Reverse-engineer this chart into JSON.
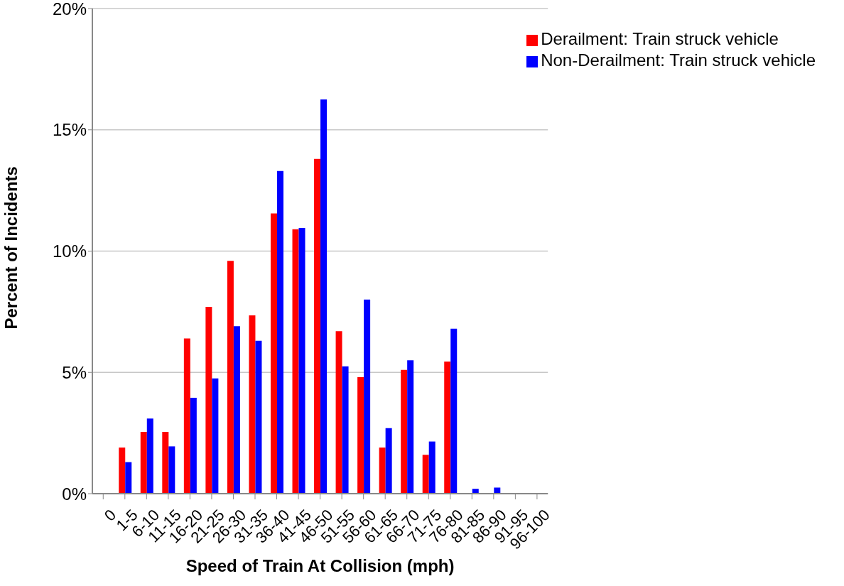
{
  "chart_data": {
    "type": "bar",
    "xlabel": "Speed of Train At Collision (mph)",
    "ylabel": "Percent of Incidents",
    "categories": [
      "0",
      "1-5",
      "6-10",
      "11-15",
      "16-20",
      "21-25",
      "26-30",
      "31-35",
      "36-40",
      "41-45",
      "46-50",
      "51-55",
      "56-60",
      "61-65",
      "66-70",
      "71-75",
      "76-80",
      "81-85",
      "86-90",
      "91-95",
      "96-100"
    ],
    "series": [
      {
        "name": "Derailment: Train struck vehicle",
        "color": "#ff0000",
        "values": [
          0,
          1.9,
          2.55,
          2.55,
          6.4,
          7.7,
          9.6,
          7.35,
          11.55,
          10.9,
          13.8,
          6.7,
          4.8,
          1.9,
          5.1,
          1.6,
          5.45,
          0,
          0,
          0,
          0
        ]
      },
      {
        "name": "Non-Derailment: Train struck vehicle",
        "color": "#0000ff",
        "values": [
          0,
          1.3,
          3.1,
          1.95,
          3.95,
          4.75,
          6.9,
          6.3,
          13.3,
          10.95,
          16.25,
          5.25,
          8.0,
          2.7,
          5.5,
          2.15,
          6.8,
          0.2,
          0.25,
          0,
          0
        ]
      }
    ],
    "ylim": [
      0,
      20
    ],
    "yticks": [
      {
        "value": 0,
        "label": "0%"
      },
      {
        "value": 5,
        "label": "5%"
      },
      {
        "value": 10,
        "label": "10%"
      },
      {
        "value": 15,
        "label": "15%"
      },
      {
        "value": 20,
        "label": "20%"
      }
    ],
    "grid": "y",
    "legend": "top right"
  }
}
